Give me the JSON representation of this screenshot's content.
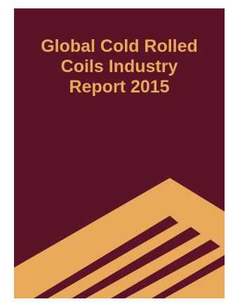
{
  "cover": {
    "background_color": "#5b1426",
    "accent_color": "#e9a85a",
    "title_lines": [
      "Global Cold Rolled",
      "Coils Industry",
      "Report 2015"
    ],
    "graphic": "stacked-chevron-bars"
  }
}
